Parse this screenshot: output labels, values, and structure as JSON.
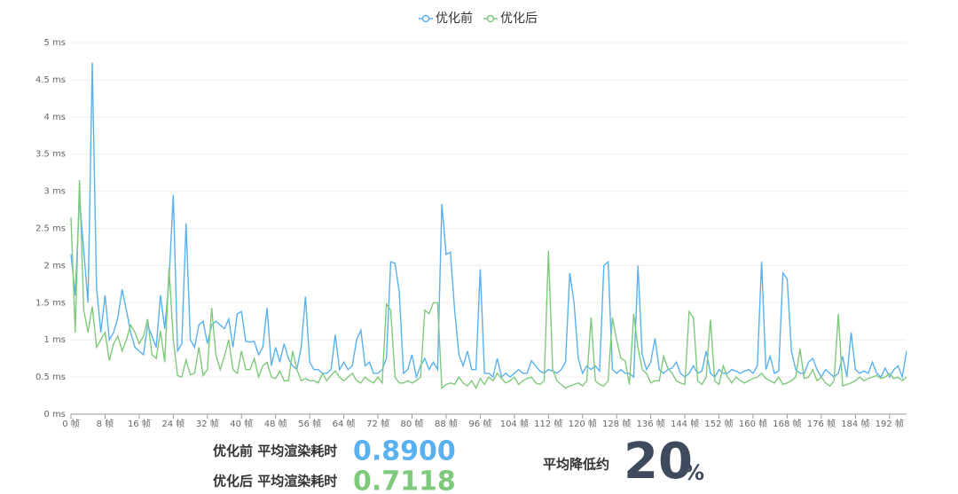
{
  "chart_data": {
    "type": "line",
    "legend_position": "top",
    "grid": true,
    "categories": [
      "0 帧",
      null,
      null,
      null,
      null,
      null,
      null,
      null,
      "8 帧",
      null,
      null,
      null,
      null,
      null,
      null,
      null,
      "16 帧",
      null,
      null,
      null,
      null,
      null,
      null,
      null,
      "24 帧",
      null,
      null,
      null,
      null,
      null,
      null,
      null,
      "32 帧",
      null,
      null,
      null,
      null,
      null,
      null,
      null,
      "40 帧",
      null,
      null,
      null,
      null,
      null,
      null,
      null,
      "48 帧",
      null,
      null,
      null,
      null,
      null,
      null,
      null,
      "56 帧",
      null,
      null,
      null,
      null,
      null,
      null,
      null,
      "64 帧",
      null,
      null,
      null,
      null,
      null,
      null,
      null,
      "72 帧",
      null,
      null,
      null,
      null,
      null,
      null,
      null,
      "80 帧",
      null,
      null,
      null,
      null,
      null,
      null,
      null,
      "88 帧",
      null,
      null,
      null,
      null,
      null,
      null,
      null,
      "96 帧",
      null,
      null,
      null,
      null,
      null,
      null,
      null,
      "104 帧",
      null,
      null,
      null,
      null,
      null,
      null,
      null,
      "112 帧",
      null,
      null,
      null,
      null,
      null,
      null,
      null,
      "120 帧",
      null,
      null,
      null,
      null,
      null,
      null,
      null,
      "128 帧",
      null,
      null,
      null,
      null,
      null,
      null,
      null,
      "136 帧",
      null,
      null,
      null,
      null,
      null,
      null,
      null,
      "144 帧",
      null,
      null,
      null,
      null,
      null,
      null,
      null,
      "152 帧",
      null,
      null,
      null,
      null,
      null,
      null,
      null,
      "160 帧",
      null,
      null,
      null,
      null,
      null,
      null,
      null,
      "168 帧",
      null,
      null,
      null,
      null,
      null,
      null,
      null,
      "176 帧",
      null,
      null,
      null,
      null,
      null,
      null,
      null,
      "184 帧",
      null,
      null,
      null,
      null,
      null,
      null,
      null,
      "192 帧",
      null,
      null,
      null,
      null
    ],
    "ylim": [
      0,
      5
    ],
    "yticks": [
      {
        "value": 0,
        "label": "0 ms"
      },
      {
        "value": 0.5,
        "label": "0.5 ms"
      },
      {
        "value": 1,
        "label": "1 ms"
      },
      {
        "value": 1.5,
        "label": "1.5 ms"
      },
      {
        "value": 2,
        "label": "2 ms"
      },
      {
        "value": 2.5,
        "label": "2.5 ms"
      },
      {
        "value": 3,
        "label": "3 ms"
      },
      {
        "value": 3.5,
        "label": "3.5 ms"
      },
      {
        "value": 4,
        "label": "4 ms"
      },
      {
        "value": 4.5,
        "label": "4.5 ms"
      },
      {
        "value": 5,
        "label": "5 ms"
      }
    ],
    "series": [
      {
        "name": "优化前",
        "color": "#5ab1ef",
        "values": [
          2.15,
          1.6,
          2.9,
          2.2,
          1.5,
          4.73,
          1.7,
          1.1,
          1.6,
          1.0,
          1.1,
          1.3,
          1.68,
          1.4,
          1.1,
          0.9,
          0.85,
          0.8,
          1.2,
          1.05,
          0.9,
          1.6,
          1.15,
          1.8,
          2.95,
          0.85,
          0.95,
          2.57,
          1.0,
          0.9,
          1.2,
          1.25,
          0.95,
          1.2,
          1.25,
          1.2,
          1.15,
          1.28,
          0.9,
          1.35,
          1.38,
          0.98,
          0.97,
          0.98,
          0.8,
          0.9,
          1.43,
          0.65,
          0.9,
          0.7,
          0.95,
          0.75,
          0.65,
          0.6,
          0.9,
          1.58,
          0.7,
          0.6,
          0.6,
          0.55,
          0.55,
          0.6,
          1.07,
          0.6,
          0.7,
          0.6,
          0.65,
          1.0,
          1.13,
          0.65,
          0.7,
          0.55,
          0.55,
          0.6,
          0.75,
          2.05,
          2.03,
          1.65,
          0.55,
          0.6,
          0.8,
          0.5,
          0.65,
          0.75,
          0.6,
          0.7,
          0.6,
          2.83,
          2.15,
          2.18,
          1.4,
          0.8,
          0.65,
          0.85,
          0.6,
          0.6,
          1.95,
          0.55,
          0.55,
          0.5,
          0.75,
          0.5,
          0.55,
          0.5,
          0.55,
          0.6,
          0.55,
          0.55,
          0.72,
          0.65,
          0.58,
          0.55,
          0.6,
          0.58,
          0.55,
          0.6,
          0.7,
          1.9,
          1.5,
          0.75,
          0.55,
          0.65,
          0.6,
          0.65,
          0.58,
          2.0,
          2.05,
          0.6,
          0.55,
          0.6,
          0.55,
          0.55,
          0.5,
          2.0,
          0.8,
          0.6,
          0.7,
          1.02,
          0.6,
          0.55,
          0.6,
          0.62,
          0.7,
          0.55,
          0.5,
          0.55,
          0.65,
          0.55,
          0.58,
          0.85,
          0.55,
          0.5,
          0.6,
          0.55,
          0.55,
          0.6,
          0.58,
          0.55,
          0.58,
          0.6,
          0.55,
          0.65,
          2.05,
          0.6,
          0.78,
          0.55,
          0.58,
          1.9,
          1.82,
          0.85,
          0.6,
          0.55,
          0.55,
          0.7,
          0.75,
          0.6,
          0.5,
          0.6,
          0.55,
          0.5,
          0.55,
          0.78,
          0.5,
          1.1,
          0.6,
          0.55,
          0.58,
          0.55,
          0.7,
          0.55,
          0.5,
          0.62,
          0.5,
          0.6,
          0.65,
          0.5,
          0.85
        ]
      },
      {
        "name": "优化后",
        "color": "#7fc97c",
        "values": [
          2.65,
          1.1,
          3.15,
          1.4,
          1.1,
          1.45,
          0.9,
          1.0,
          1.1,
          0.72,
          0.95,
          1.05,
          0.85,
          1.0,
          1.2,
          1.1,
          0.95,
          1.05,
          1.28,
          0.8,
          0.75,
          1.12,
          0.7,
          1.97,
          1.0,
          0.52,
          0.5,
          0.73,
          0.53,
          0.55,
          0.9,
          0.52,
          0.6,
          1.43,
          0.8,
          0.6,
          0.78,
          1.0,
          0.6,
          0.55,
          0.85,
          0.6,
          0.6,
          0.75,
          0.5,
          0.65,
          0.7,
          0.5,
          0.48,
          0.58,
          0.45,
          0.45,
          0.85,
          0.6,
          0.45,
          0.48,
          0.45,
          0.45,
          0.42,
          0.55,
          0.45,
          0.52,
          0.58,
          0.5,
          0.45,
          0.5,
          0.55,
          0.45,
          0.42,
          0.5,
          0.45,
          0.42,
          0.5,
          0.42,
          1.48,
          1.4,
          0.5,
          0.42,
          0.42,
          0.45,
          0.42,
          0.45,
          0.5,
          1.4,
          1.35,
          1.5,
          1.5,
          0.35,
          0.4,
          0.42,
          0.4,
          0.5,
          0.42,
          0.38,
          0.45,
          0.35,
          0.48,
          0.4,
          0.5,
          0.45,
          0.55,
          0.48,
          0.42,
          0.45,
          0.5,
          0.4,
          0.45,
          0.48,
          0.5,
          0.42,
          0.4,
          0.45,
          2.2,
          0.6,
          0.45,
          0.4,
          0.35,
          0.38,
          0.4,
          0.42,
          0.38,
          0.45,
          1.3,
          0.45,
          0.4,
          0.38,
          0.45,
          1.3,
          1.0,
          0.75,
          0.72,
          0.4,
          1.35,
          0.9,
          0.6,
          0.55,
          0.42,
          0.45,
          0.45,
          0.78,
          0.62,
          0.55,
          0.45,
          0.42,
          0.4,
          1.38,
          1.3,
          0.45,
          0.4,
          0.5,
          1.27,
          0.45,
          0.4,
          0.65,
          0.5,
          0.42,
          0.5,
          0.45,
          0.42,
          0.45,
          0.48,
          0.5,
          0.55,
          0.48,
          0.45,
          0.42,
          0.5,
          0.4,
          0.42,
          0.45,
          0.5,
          0.88,
          0.48,
          0.5,
          0.6,
          0.45,
          0.5,
          0.42,
          0.38,
          0.45,
          1.35,
          0.38,
          0.4,
          0.42,
          0.45,
          0.5,
          0.45,
          0.48,
          0.5,
          0.52,
          0.48,
          0.5,
          0.55,
          0.48,
          0.5,
          0.45,
          0.5
        ]
      }
    ]
  },
  "summary": {
    "before_label": "优化前 平均渲染耗时",
    "before_value": "0.8900",
    "after_label": "优化后 平均渲染耗时",
    "after_value": "0.7118",
    "reduction_label": "平均降低约",
    "reduction_value": "20",
    "reduction_unit": "%"
  }
}
